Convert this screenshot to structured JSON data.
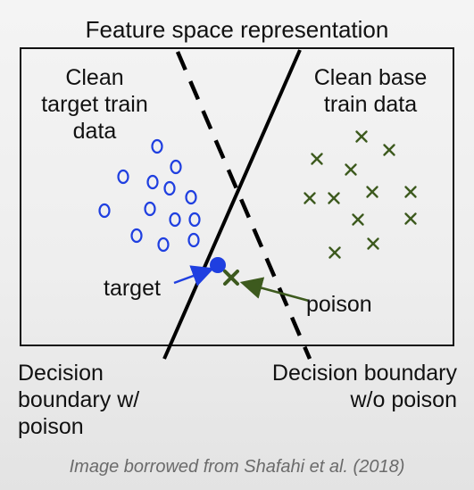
{
  "title": "Feature space representation",
  "labels": {
    "clean_target": "Clean\ntarget train\ndata",
    "clean_base": "Clean base\ntrain data",
    "target": "target",
    "poison": "poison",
    "boundary_with_poison": "Decision\nboundary w/\npoison",
    "boundary_without_poison": "Decision boundary\nw/o poison"
  },
  "credit": "Image borrowed from Shafahi et al. (2018)",
  "colors": {
    "target_class": "#1f3fe0",
    "base_class": "#3d5a1e",
    "target_point": "#1f3fe0",
    "poison_point": "#3d5a1e",
    "boundary": "#000000",
    "credit_text": "#6b6b6b"
  },
  "icons": {
    "target_marker": "circle",
    "base_marker": "x-mark",
    "target_point": "filled-circle",
    "poison_point": "x-mark"
  }
}
